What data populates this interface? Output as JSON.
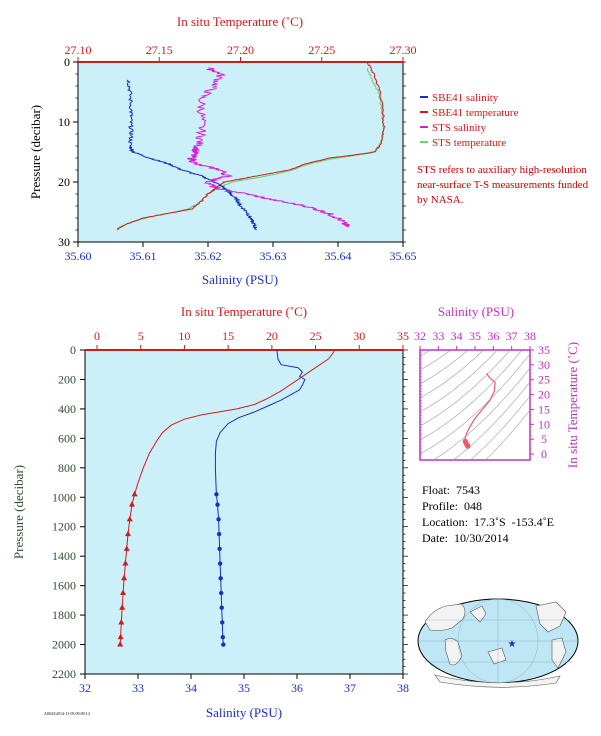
{
  "chart_data": [
    {
      "type": "line",
      "x_top": {
        "label": "In situ Temperature (˚C)",
        "range": [
          27.1,
          27.3
        ],
        "ticks": [
          27.1,
          27.15,
          27.2,
          27.25,
          27.3
        ],
        "tick_labels": [
          "27.10",
          "27.15",
          "27.20",
          "27.25",
          "27.30"
        ]
      },
      "x_bottom": {
        "label": "Salinity (PSU)",
        "range": [
          35.6,
          35.65
        ],
        "ticks": [
          35.6,
          35.61,
          35.62,
          35.63,
          35.64,
          35.65
        ],
        "tick_labels": [
          "35.60",
          "35.61",
          "35.62",
          "35.63",
          "35.64",
          "35.65"
        ]
      },
      "y": {
        "label": "Pressure (decibar)",
        "range": [
          0,
          30
        ],
        "inverted": true,
        "ticks": [
          0,
          10,
          20,
          30
        ],
        "tick_labels": [
          "0",
          "10",
          "20",
          "30"
        ]
      },
      "legend": {
        "placement": "right",
        "entries": [
          {
            "name": "SBE41 salinity",
            "color": "#1a2fbf"
          },
          {
            "name": "SBE41 temperature",
            "color": "#d11a1a"
          },
          {
            "name": "STS salinity",
            "color": "#d81bd8"
          },
          {
            "name": "STS temperature",
            "color": "#6fcf6f"
          }
        ]
      },
      "note": "STS refers to auxiliary high-resolution near-surface T-S measurements funded by NASA.",
      "series": [
        {
          "name": "SBE41 salinity",
          "axis": "bottom",
          "points": [
            [
              35.6078,
              3
            ],
            [
              35.608,
              5
            ],
            [
              35.6082,
              8
            ],
            [
              35.6081,
              10
            ],
            [
              35.6082,
              12
            ],
            [
              35.608,
              14
            ],
            [
              35.6085,
              15
            ],
            [
              35.611,
              16
            ],
            [
              35.614,
              17
            ],
            [
              35.616,
              18
            ],
            [
              35.619,
              19
            ],
            [
              35.621,
              20
            ],
            [
              35.6225,
              21
            ],
            [
              35.6235,
              22
            ],
            [
              35.6245,
              23
            ],
            [
              35.625,
              24
            ],
            [
              35.626,
              25
            ],
            [
              35.6265,
              26
            ],
            [
              35.627,
              27
            ],
            [
              35.6275,
              28
            ]
          ]
        },
        {
          "name": "SBE41 temperature",
          "axis": "top",
          "points": [
            [
              27.278,
              0
            ],
            [
              27.282,
              2
            ],
            [
              27.286,
              5
            ],
            [
              27.288,
              9
            ],
            [
              27.288,
              12
            ],
            [
              27.286,
              14
            ],
            [
              27.282,
              15
            ],
            [
              27.27,
              15.5
            ],
            [
              27.255,
              16
            ],
            [
              27.24,
              17
            ],
            [
              27.23,
              18
            ],
            [
              27.22,
              18.5
            ],
            [
              27.21,
              19
            ],
            [
              27.2,
              19.5
            ],
            [
              27.19,
              20
            ],
            [
              27.185,
              21
            ],
            [
              27.18,
              22
            ],
            [
              27.175,
              23.5
            ],
            [
              27.17,
              24.5
            ],
            [
              27.16,
              25
            ],
            [
              27.15,
              25.5
            ],
            [
              27.14,
              26
            ],
            [
              27.13,
              27
            ],
            [
              27.124,
              28
            ]
          ]
        },
        {
          "name": "STS salinity",
          "axis": "bottom",
          "points": [
            [
              35.62,
              1
            ],
            [
              35.622,
              2
            ],
            [
              35.621,
              4
            ],
            [
              35.619,
              6
            ],
            [
              35.619,
              9
            ],
            [
              35.619,
              12
            ],
            [
              35.6185,
              14
            ],
            [
              35.618,
              15
            ],
            [
              35.6175,
              16
            ],
            [
              35.618,
              17
            ],
            [
              35.622,
              18
            ],
            [
              35.623,
              19
            ],
            [
              35.62,
              20
            ],
            [
              35.621,
              21
            ],
            [
              35.626,
              22
            ],
            [
              35.63,
              23
            ],
            [
              35.635,
              24
            ],
            [
              35.638,
              25
            ],
            [
              35.64,
              26
            ],
            [
              35.641,
              27
            ],
            [
              35.6415,
              27.5
            ]
          ]
        },
        {
          "name": "STS temperature",
          "axis": "top",
          "points": [
            [
              27.278,
              1
            ],
            [
              27.281,
              3
            ],
            [
              27.285,
              5
            ],
            [
              27.287,
              8
            ],
            [
              27.288,
              11
            ],
            [
              27.287,
              13
            ],
            [
              27.283,
              15
            ],
            [
              27.27,
              15.6
            ],
            [
              27.255,
              16.2
            ],
            [
              27.242,
              17
            ],
            [
              27.232,
              18
            ],
            [
              27.222,
              18.7
            ],
            [
              27.21,
              19.3
            ],
            [
              27.195,
              20
            ],
            [
              27.186,
              21
            ],
            [
              27.18,
              22
            ],
            [
              27.174,
              23.5
            ],
            [
              27.168,
              24.5
            ],
            [
              27.156,
              25.2
            ],
            [
              27.145,
              25.8
            ],
            [
              27.135,
              26.5
            ],
            [
              27.128,
              27.2
            ],
            [
              27.124,
              27.8
            ]
          ]
        }
      ]
    },
    {
      "type": "line",
      "x_top": {
        "label": "In situ Temperature (˚C)",
        "range": [
          -5,
          35
        ],
        "ticks": [
          0,
          5,
          10,
          15,
          20,
          25,
          30,
          35
        ],
        "tick_labels": [
          "0",
          "5",
          "10",
          "15",
          "20",
          "25",
          "30",
          "35"
        ]
      },
      "x_bottom": {
        "label": "Salinity (PSU)",
        "range": [
          32,
          38
        ],
        "ticks": [
          32,
          33,
          34,
          35,
          36,
          37,
          38
        ],
        "tick_labels": [
          "32",
          "33",
          "34",
          "35",
          "36",
          "37",
          "38"
        ]
      },
      "y": {
        "label": "Pressure (decibar)",
        "range": [
          0,
          2200
        ],
        "inverted": true,
        "ticks": [
          0,
          200,
          400,
          600,
          800,
          1000,
          1200,
          1400,
          1600,
          1800,
          2000,
          2200
        ],
        "tick_labels": [
          "0",
          "200",
          "400",
          "600",
          "800",
          "1000",
          "1200",
          "1400",
          "1600",
          "1800",
          "2000",
          "2200"
        ]
      },
      "series": [
        {
          "name": "temperature",
          "axis": "top",
          "color": "#d11a1a",
          "marker": "triangle",
          "marker_from": 980,
          "points": [
            [
              27.2,
              0
            ],
            [
              27.0,
              20
            ],
            [
              26.5,
              60
            ],
            [
              25.5,
              100
            ],
            [
              24.0,
              160
            ],
            [
              22.5,
              220
            ],
            [
              21.0,
              280
            ],
            [
              19.5,
              330
            ],
            [
              18.0,
              370
            ],
            [
              16.0,
              400
            ],
            [
              14.0,
              420
            ],
            [
              12.0,
              440
            ],
            [
              10.0,
              470
            ],
            [
              8.5,
              510
            ],
            [
              7.5,
              560
            ],
            [
              6.8,
              620
            ],
            [
              6.0,
              700
            ],
            [
              5.3,
              800
            ],
            [
              4.7,
              900
            ],
            [
              4.3,
              980
            ],
            [
              4.0,
              1050
            ],
            [
              3.75,
              1150
            ],
            [
              3.55,
              1250
            ],
            [
              3.4,
              1350
            ],
            [
              3.25,
              1450
            ],
            [
              3.1,
              1550
            ],
            [
              2.98,
              1650
            ],
            [
              2.88,
              1750
            ],
            [
              2.78,
              1850
            ],
            [
              2.7,
              1950
            ],
            [
              2.65,
              2000
            ]
          ]
        },
        {
          "name": "salinity",
          "axis": "bottom",
          "color": "#1a2fbf",
          "marker": "dot",
          "marker_from": 980,
          "points": [
            [
              35.62,
              0
            ],
            [
              35.64,
              60
            ],
            [
              35.7,
              100
            ],
            [
              36.02,
              120
            ],
            [
              36.1,
              150
            ],
            [
              36.05,
              180
            ],
            [
              36.15,
              200
            ],
            [
              36.1,
              240
            ],
            [
              36.05,
              270
            ],
            [
              35.9,
              300
            ],
            [
              35.7,
              340
            ],
            [
              35.45,
              380
            ],
            [
              35.2,
              420
            ],
            [
              34.9,
              460
            ],
            [
              34.7,
              500
            ],
            [
              34.55,
              560
            ],
            [
              34.48,
              620
            ],
            [
              34.46,
              700
            ],
            [
              34.46,
              800
            ],
            [
              34.47,
              900
            ],
            [
              34.48,
              980
            ],
            [
              34.5,
              1050
            ],
            [
              34.52,
              1150
            ],
            [
              34.53,
              1250
            ],
            [
              34.54,
              1350
            ],
            [
              34.55,
              1450
            ],
            [
              34.56,
              1550
            ],
            [
              34.57,
              1650
            ],
            [
              34.58,
              1750
            ],
            [
              34.59,
              1850
            ],
            [
              34.6,
              1950
            ],
            [
              34.61,
              2000
            ]
          ]
        }
      ]
    },
    {
      "type": "scatter",
      "x_top": {
        "label": "Salinity (PSU)",
        "range": [
          32,
          38
        ],
        "ticks": [
          32,
          33,
          34,
          35,
          36,
          37,
          38
        ],
        "tick_labels": [
          "32",
          "33",
          "34",
          "35",
          "36",
          "37",
          "38"
        ]
      },
      "y_right": {
        "label": "In situ Temperature (˚C)",
        "range": [
          -2,
          35
        ],
        "ticks": [
          0,
          5,
          10,
          15,
          20,
          25,
          30,
          35
        ],
        "tick_labels": [
          "0",
          "5",
          "10",
          "15",
          "20",
          "25",
          "30",
          "35"
        ]
      },
      "series": [
        {
          "name": "T-S",
          "color": "#ee5a6a",
          "points": [
            [
              35.64,
              27.2
            ],
            [
              35.75,
              26.0
            ],
            [
              36.1,
              24.0
            ],
            [
              36.05,
              21.0
            ],
            [
              35.8,
              18.0
            ],
            [
              35.4,
              15.0
            ],
            [
              35.0,
              12.0
            ],
            [
              34.7,
              9.0
            ],
            [
              34.55,
              7.0
            ],
            [
              34.47,
              5.5
            ],
            [
              34.47,
              4.3
            ],
            [
              34.52,
              3.5
            ],
            [
              34.58,
              3.0
            ],
            [
              34.61,
              2.65
            ]
          ]
        }
      ]
    }
  ],
  "info": {
    "float": "Float:  7543",
    "profile": "Profile:  048",
    "location": "Location:  17.3˚S  -153.4˚E",
    "date": "Date:  10/30/2014"
  },
  "footer": "A0043/2014-11-05 09:09:14",
  "colors": {
    "bg": "#ccf0fa",
    "red": "#d11a1a",
    "blue": "#1a2fbf",
    "magenta": "#c030c0",
    "ylabel": "#2f4f2f"
  },
  "map": {
    "float_marker": "star"
  }
}
